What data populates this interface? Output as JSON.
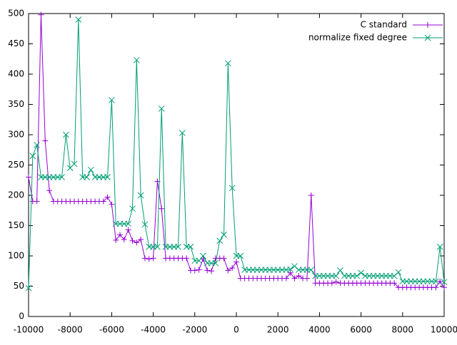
{
  "chart_data": {
    "type": "line",
    "x": [
      -10000,
      -9800,
      -9600,
      -9400,
      -9200,
      -9000,
      -8800,
      -8600,
      -8400,
      -8200,
      -8000,
      -7800,
      -7600,
      -7400,
      -7200,
      -7000,
      -6800,
      -6600,
      -6400,
      -6200,
      -6000,
      -5800,
      -5600,
      -5400,
      -5200,
      -5000,
      -4800,
      -4600,
      -4400,
      -4200,
      -4000,
      -3800,
      -3600,
      -3400,
      -3200,
      -3000,
      -2800,
      -2600,
      -2400,
      -2200,
      -2000,
      -1800,
      -1600,
      -1400,
      -1200,
      -1000,
      -800,
      -600,
      -400,
      -200,
      0,
      200,
      400,
      600,
      800,
      1000,
      1200,
      1400,
      1600,
      1800,
      2000,
      2200,
      2400,
      2600,
      2800,
      3000,
      3200,
      3400,
      3600,
      3800,
      4000,
      4200,
      4400,
      4600,
      4800,
      5000,
      5200,
      5400,
      5600,
      5800,
      6000,
      6200,
      6400,
      6600,
      6800,
      7000,
      7200,
      7400,
      7600,
      7800,
      8000,
      8200,
      8400,
      8600,
      8800,
      9000,
      9200,
      9400,
      9600,
      9800,
      10000
    ],
    "series": [
      {
        "name": "C standard",
        "color": "#9400d3",
        "values": [
          230,
          190,
          190,
          498,
          290,
          208,
          190,
          190,
          190,
          190,
          190,
          190,
          190,
          190,
          190,
          190,
          190,
          190,
          190,
          197,
          185,
          126,
          135,
          127,
          143,
          125,
          122,
          127,
          96,
          95,
          96,
          223,
          178,
          96,
          96,
          96,
          96,
          96,
          96,
          76,
          76,
          77,
          95,
          76,
          75,
          96,
          96,
          96,
          76,
          80,
          90,
          63,
          63,
          63,
          63,
          63,
          63,
          63,
          63,
          63,
          63,
          63,
          63,
          72,
          63,
          67,
          63,
          63,
          200,
          55,
          55,
          55,
          55,
          55,
          57,
          55,
          55,
          55,
          55,
          55,
          55,
          55,
          55,
          55,
          55,
          55,
          55,
          55,
          55,
          48,
          48,
          48,
          48,
          48,
          48,
          48,
          48,
          48,
          48,
          58,
          48
        ]
      },
      {
        "name": "normalize fixed degree",
        "color": "#009e73",
        "values": [
          47,
          265,
          283,
          230,
          230,
          230,
          230,
          230,
          230,
          300,
          245,
          252,
          490,
          230,
          230,
          242,
          230,
          230,
          230,
          230,
          357,
          153,
          153,
          153,
          153,
          178,
          423,
          200,
          152,
          115,
          115,
          115,
          343,
          115,
          115,
          115,
          115,
          303,
          115,
          115,
          92,
          92,
          100,
          88,
          88,
          88,
          125,
          135,
          418,
          212,
          100,
          100,
          77,
          77,
          77,
          77,
          77,
          77,
          77,
          77,
          77,
          77,
          77,
          78,
          83,
          77,
          77,
          77,
          77,
          67,
          67,
          67,
          67,
          67,
          67,
          76,
          67,
          67,
          67,
          67,
          72,
          67,
          67,
          67,
          67,
          67,
          67,
          67,
          67,
          73,
          58,
          58,
          58,
          58,
          58,
          58,
          58,
          58,
          58,
          115,
          57
        ]
      }
    ],
    "xlim": [
      -10000,
      10000
    ],
    "xticks": [
      -10000,
      -8000,
      -6000,
      -4000,
      -2000,
      0,
      2000,
      4000,
      6000,
      8000,
      10000
    ],
    "ylim": [
      0,
      500
    ],
    "yticks": [
      0,
      50,
      100,
      150,
      200,
      250,
      300,
      350,
      400,
      450,
      500
    ],
    "legend": "top-right"
  }
}
